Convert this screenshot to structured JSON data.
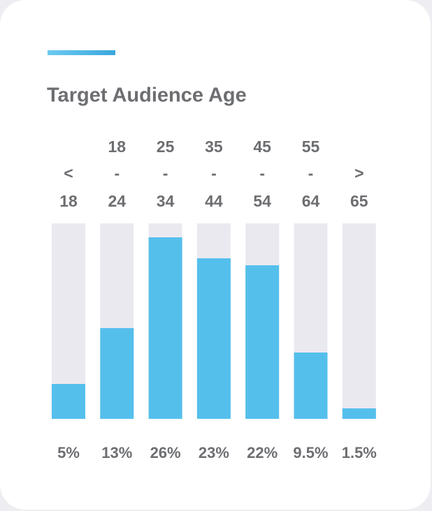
{
  "chart_data": {
    "type": "bar",
    "title": "Target Audience Age",
    "categories": [
      "< 18",
      "18 - 24",
      "25 - 34",
      "35 - 44",
      "45 - 54",
      "55 - 64",
      "> 65"
    ],
    "values": [
      5,
      13,
      26,
      23,
      22,
      9.5,
      1.5
    ],
    "value_labels": [
      "5%",
      "13%",
      "26%",
      "23%",
      "22%",
      "9.5%",
      "1.5%"
    ],
    "color": "#55bfec",
    "ylim": [
      0,
      28
    ]
  }
}
